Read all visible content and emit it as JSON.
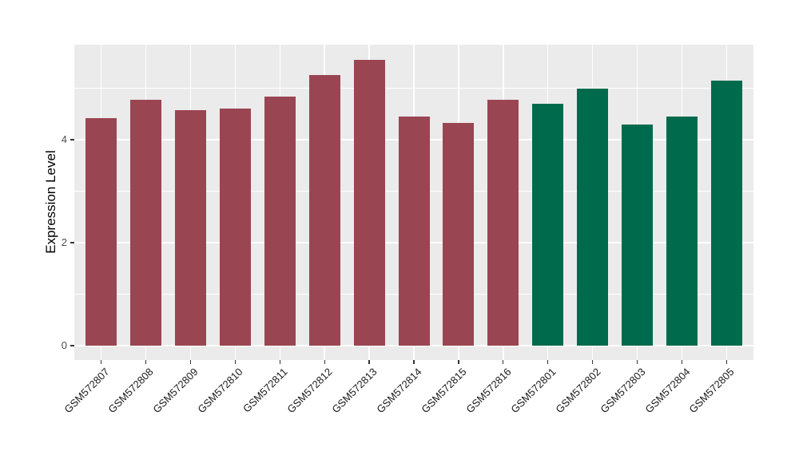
{
  "chart_data": {
    "type": "bar",
    "title": "",
    "xlabel": "",
    "ylabel": "Expression Level",
    "categories": [
      "GSM572807",
      "GSM572808",
      "GSM572809",
      "GSM572810",
      "GSM572811",
      "GSM572812",
      "GSM572813",
      "GSM572814",
      "GSM572815",
      "GSM572816",
      "GSM572801",
      "GSM572802",
      "GSM572803",
      "GSM572804",
      "GSM572805"
    ],
    "values": [
      4.42,
      4.77,
      4.58,
      4.6,
      4.84,
      5.25,
      5.55,
      4.45,
      4.32,
      4.78,
      4.69,
      5.0,
      4.29,
      4.45,
      5.15
    ],
    "bar_colors": [
      "#9A4552",
      "#9A4552",
      "#9A4552",
      "#9A4552",
      "#9A4552",
      "#9A4552",
      "#9A4552",
      "#9A4552",
      "#9A4552",
      "#9A4552",
      "#006B4C",
      "#006B4C",
      "#006B4C",
      "#006B4C",
      "#006B4C"
    ],
    "ytick_labels": [
      "0",
      "2",
      "4"
    ],
    "yticks_major": [
      0,
      2,
      4
    ],
    "yticks_minor": [
      1,
      3,
      5
    ],
    "ylim": [
      0,
      5.85
    ],
    "grid": true,
    "legend": "none",
    "colors": {
      "group1_bar": "#9A4552",
      "group2_bar": "#006B4C",
      "panel_background": "#EBEBEB",
      "gridline": "#FFFFFF",
      "tick_text": "#4D4D4D",
      "axis_title_text": "#000000"
    }
  }
}
